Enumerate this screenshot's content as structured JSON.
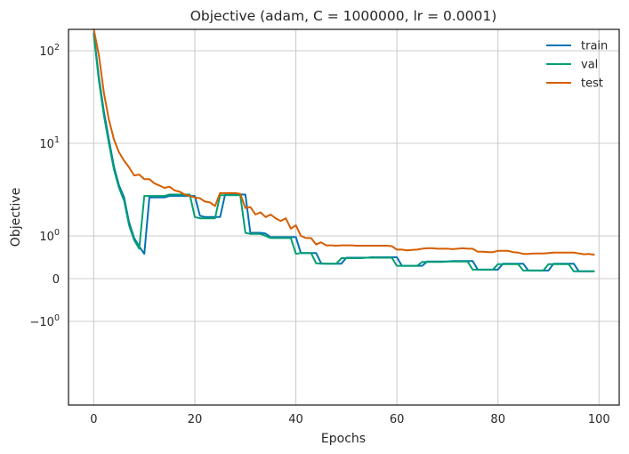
{
  "chart_data": {
    "type": "line",
    "title": "Objective (adam, C = 1000000, lr = 0.0001)",
    "xlabel": "Epochs",
    "ylabel": "Objective",
    "y_scale": "symlog",
    "xlim": [
      -5,
      104
    ],
    "x_ticks": [
      {
        "value": 0,
        "label": "0"
      },
      {
        "value": 20,
        "label": "20"
      },
      {
        "value": 40,
        "label": "40"
      },
      {
        "value": 60,
        "label": "60"
      },
      {
        "value": 80,
        "label": "80"
      },
      {
        "value": 100,
        "label": "100"
      }
    ],
    "y_ticks": [
      {
        "value": 100,
        "base": "10",
        "exp": "2"
      },
      {
        "value": 10,
        "base": "10",
        "exp": "1"
      },
      {
        "value": 1,
        "base": "10",
        "exp": "0"
      },
      {
        "value": 0,
        "base": "0",
        "exp": ""
      },
      {
        "value": -1,
        "base": "−10",
        "exp": "0"
      }
    ],
    "grid": true,
    "legend_position": "top-right",
    "series": [
      {
        "name": "train",
        "color": "#0173b2",
        "x": [
          0,
          1,
          2,
          3,
          4,
          5,
          6,
          7,
          8,
          9,
          10,
          11,
          12,
          13,
          14,
          15,
          16,
          17,
          18,
          19,
          20,
          21,
          22,
          23,
          24,
          25,
          26,
          27,
          28,
          29,
          30,
          31,
          32,
          33,
          34,
          35,
          36,
          37,
          38,
          39,
          40,
          41,
          42,
          43,
          44,
          45,
          46,
          47,
          48,
          49,
          50,
          51,
          52,
          53,
          54,
          55,
          56,
          57,
          58,
          59,
          60,
          61,
          62,
          63,
          64,
          65,
          66,
          67,
          68,
          69,
          70,
          71,
          72,
          73,
          74,
          75,
          76,
          77,
          78,
          79,
          80,
          81,
          82,
          83,
          84,
          85,
          86,
          87,
          88,
          89,
          90,
          91,
          92,
          93,
          94,
          95,
          96,
          97,
          98,
          99
        ],
        "y": [
          155,
          52,
          22,
          11,
          5.6,
          3.5,
          2.6,
          1.4,
          0.95,
          0.75,
          0.58,
          2.6,
          2.6,
          2.6,
          2.6,
          2.7,
          2.7,
          2.7,
          2.7,
          2.7,
          2.7,
          1.65,
          1.6,
          1.6,
          1.6,
          1.6,
          2.8,
          2.8,
          2.8,
          2.8,
          2.8,
          1.08,
          1.08,
          1.08,
          1.06,
          0.97,
          0.97,
          0.97,
          0.97,
          0.97,
          0.97,
          0.6,
          0.6,
          0.6,
          0.6,
          0.36,
          0.35,
          0.35,
          0.35,
          0.35,
          0.49,
          0.49,
          0.49,
          0.49,
          0.49,
          0.5,
          0.5,
          0.5,
          0.5,
          0.5,
          0.5,
          0.3,
          0.3,
          0.3,
          0.3,
          0.3,
          0.4,
          0.4,
          0.4,
          0.4,
          0.4,
          0.41,
          0.41,
          0.41,
          0.41,
          0.41,
          0.21,
          0.21,
          0.21,
          0.21,
          0.21,
          0.35,
          0.35,
          0.35,
          0.35,
          0.35,
          0.19,
          0.19,
          0.19,
          0.19,
          0.19,
          0.35,
          0.35,
          0.35,
          0.35,
          0.35,
          0.17,
          0.17,
          0.17,
          0.17
        ]
      },
      {
        "name": "val",
        "color": "#029e73",
        "x": [
          0,
          1,
          2,
          3,
          4,
          5,
          6,
          7,
          8,
          9,
          10,
          11,
          12,
          13,
          14,
          15,
          16,
          17,
          18,
          19,
          20,
          21,
          22,
          23,
          24,
          25,
          26,
          27,
          28,
          29,
          30,
          31,
          32,
          33,
          34,
          35,
          36,
          37,
          38,
          39,
          40,
          41,
          42,
          43,
          44,
          45,
          46,
          47,
          48,
          49,
          50,
          51,
          52,
          53,
          54,
          55,
          56,
          57,
          58,
          59,
          60,
          61,
          62,
          63,
          64,
          65,
          66,
          67,
          68,
          69,
          70,
          71,
          72,
          73,
          74,
          75,
          76,
          77,
          78,
          79,
          80,
          81,
          82,
          83,
          84,
          85,
          86,
          87,
          88,
          89,
          90,
          91,
          92,
          93,
          94,
          95,
          96,
          97,
          98,
          99
        ],
        "y": [
          150,
          48,
          20,
          10,
          5.2,
          3.3,
          2.4,
          1.3,
          0.9,
          0.7,
          2.7,
          2.7,
          2.7,
          2.7,
          2.7,
          2.8,
          2.8,
          2.8,
          2.8,
          2.8,
          1.6,
          1.55,
          1.55,
          1.55,
          1.55,
          2.75,
          2.75,
          2.75,
          2.75,
          2.75,
          1.08,
          1.05,
          1.05,
          1.05,
          1.0,
          0.95,
          0.95,
          0.95,
          0.95,
          0.95,
          0.58,
          0.6,
          0.6,
          0.6,
          0.36,
          0.35,
          0.35,
          0.35,
          0.35,
          0.48,
          0.48,
          0.48,
          0.48,
          0.48,
          0.49,
          0.49,
          0.49,
          0.49,
          0.49,
          0.49,
          0.3,
          0.3,
          0.3,
          0.3,
          0.3,
          0.39,
          0.39,
          0.39,
          0.39,
          0.39,
          0.4,
          0.4,
          0.4,
          0.4,
          0.4,
          0.21,
          0.21,
          0.21,
          0.21,
          0.21,
          0.34,
          0.34,
          0.34,
          0.34,
          0.34,
          0.19,
          0.19,
          0.19,
          0.19,
          0.19,
          0.34,
          0.34,
          0.34,
          0.34,
          0.34,
          0.17,
          0.17,
          0.17,
          0.17,
          0.17
        ]
      },
      {
        "name": "test",
        "color": "#d55e00",
        "x": [
          0,
          1,
          2,
          3,
          4,
          5,
          6,
          7,
          8,
          9,
          10,
          11,
          12,
          13,
          14,
          15,
          16,
          17,
          18,
          19,
          20,
          21,
          22,
          23,
          24,
          25,
          26,
          27,
          28,
          29,
          30,
          31,
          32,
          33,
          34,
          35,
          36,
          37,
          38,
          39,
          40,
          41,
          42,
          43,
          44,
          45,
          46,
          47,
          48,
          49,
          50,
          51,
          52,
          53,
          54,
          55,
          56,
          57,
          58,
          59,
          60,
          61,
          62,
          63,
          64,
          65,
          66,
          67,
          68,
          69,
          70,
          71,
          72,
          73,
          74,
          75,
          76,
          77,
          78,
          79,
          80,
          81,
          82,
          83,
          84,
          85,
          86,
          87,
          88,
          89,
          90,
          91,
          92,
          93,
          94,
          95,
          96,
          97,
          98,
          99
        ],
        "y": [
          300,
          90,
          35,
          18,
          11,
          8,
          6.5,
          5.5,
          4.5,
          4.6,
          4.1,
          4.1,
          3.7,
          3.5,
          3.3,
          3.4,
          3.1,
          3.0,
          2.8,
          2.7,
          2.6,
          2.55,
          2.35,
          2.3,
          2.1,
          2.9,
          2.9,
          2.9,
          2.9,
          2.85,
          2.0,
          2.05,
          1.7,
          1.8,
          1.6,
          1.7,
          1.55,
          1.45,
          1.55,
          1.2,
          1.3,
          1.0,
          0.95,
          0.95,
          0.8,
          0.85,
          0.78,
          0.78,
          0.77,
          0.78,
          0.78,
          0.78,
          0.77,
          0.77,
          0.77,
          0.77,
          0.77,
          0.77,
          0.77,
          0.76,
          0.68,
          0.68,
          0.66,
          0.67,
          0.68,
          0.7,
          0.71,
          0.71,
          0.7,
          0.7,
          0.7,
          0.69,
          0.7,
          0.71,
          0.7,
          0.7,
          0.63,
          0.63,
          0.62,
          0.62,
          0.65,
          0.65,
          0.65,
          0.62,
          0.61,
          0.58,
          0.58,
          0.59,
          0.59,
          0.59,
          0.6,
          0.61,
          0.61,
          0.61,
          0.61,
          0.61,
          0.59,
          0.57,
          0.58,
          0.56
        ]
      }
    ]
  }
}
